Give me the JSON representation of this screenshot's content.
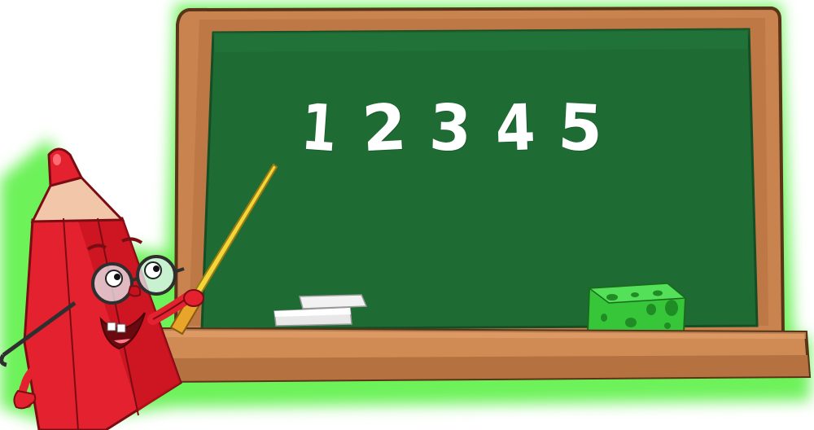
{
  "board": {
    "digits": [
      "1",
      "2",
      "3",
      "4",
      "5"
    ]
  },
  "colors": {
    "glow": "#6df25a",
    "frame": "#c9834f",
    "frame_dark": "#7a4a25",
    "chalkboard": "#1e6b34",
    "ledge": "#d08b55",
    "pencil_red": "#e4212e",
    "pencil_tip": "#f2c6a8",
    "pointer": "#f3d63a",
    "sponge": "#37c63a",
    "chalk": "#f2f2f2"
  },
  "icons": {
    "character": "pencil-character-icon",
    "pointer": "pointer-stick-icon",
    "eraser": "sponge-eraser-icon",
    "chalk": "chalk-pieces-icon"
  }
}
